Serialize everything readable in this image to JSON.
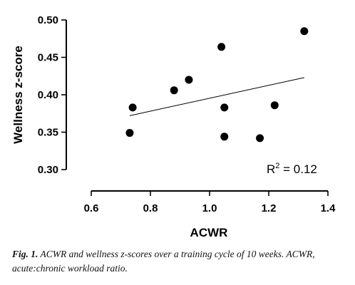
{
  "chart_data": {
    "type": "scatter",
    "xlabel": "ACWR",
    "ylabel": "Wellness z-score",
    "xlim": [
      0.6,
      1.4
    ],
    "ylim": [
      0.3,
      0.5
    ],
    "xticks": [
      "0.6",
      "0.8",
      "1.0",
      "1.2",
      "1.4"
    ],
    "yticks": [
      "0.30",
      "0.35",
      "0.40",
      "0.45",
      "0.50"
    ],
    "grid": false,
    "points": [
      {
        "x": 0.73,
        "y": 0.349
      },
      {
        "x": 0.74,
        "y": 0.383
      },
      {
        "x": 0.88,
        "y": 0.406
      },
      {
        "x": 0.93,
        "y": 0.42
      },
      {
        "x": 1.04,
        "y": 0.464
      },
      {
        "x": 1.05,
        "y": 0.383
      },
      {
        "x": 1.05,
        "y": 0.344
      },
      {
        "x": 1.17,
        "y": 0.342
      },
      {
        "x": 1.22,
        "y": 0.386
      },
      {
        "x": 1.32,
        "y": 0.485
      }
    ],
    "trendline": {
      "x": [
        0.73,
        1.32
      ],
      "y": [
        0.372,
        0.423
      ]
    },
    "annotation": {
      "prefix": "R",
      "sup": "2",
      "suffix": " = 0.12"
    }
  },
  "caption": {
    "label": "Fig. 1.",
    "text": " ACWR and wellness z-scores over a training cycle of 10 weeks. ACWR, acute:chronic workload ratio."
  },
  "colors": {
    "points": "#000000",
    "trendline": "#000000"
  }
}
